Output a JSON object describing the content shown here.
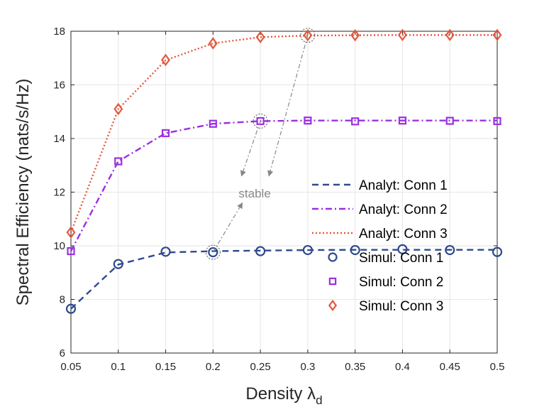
{
  "chart_data": {
    "type": "line",
    "x": [
      0.05,
      0.1,
      0.15,
      0.2,
      0.25,
      0.3,
      0.35,
      0.4,
      0.45,
      0.5
    ],
    "x_tick_labels": [
      "0.05",
      "0.1",
      "0.15",
      "0.2",
      "0.25",
      "0.3",
      "0.35",
      "0.4",
      "0.45",
      "0.5"
    ],
    "y_ticks": [
      6,
      8,
      10,
      12,
      14,
      16,
      18
    ],
    "y_tick_labels": [
      "6",
      "8",
      "10",
      "12",
      "14",
      "16",
      "18"
    ],
    "xlim": [
      0.05,
      0.5
    ],
    "ylim": [
      6,
      18
    ],
    "grid": true,
    "xlabel_main": "Density ",
    "xlabel_symbol": "λ",
    "xlabel_subscript": "d",
    "ylabel": "Spectral Efficiency (nats/s/Hz)",
    "series": [
      {
        "name": "Analyt: Conn 1",
        "kind": "line",
        "style": "dashed",
        "color": "#2f4a8e",
        "values": [
          7.65,
          9.3,
          9.75,
          9.8,
          9.82,
          9.84,
          9.85,
          9.85,
          9.85,
          9.85
        ]
      },
      {
        "name": "Analyt: Conn 2",
        "kind": "line",
        "style": "dashdot",
        "color": "#9b30e0",
        "values": [
          9.8,
          13.15,
          14.2,
          14.55,
          14.65,
          14.67,
          14.67,
          14.67,
          14.67,
          14.67
        ]
      },
      {
        "name": "Analyt: Conn 3",
        "kind": "line",
        "style": "dotted",
        "color": "#e2583e",
        "values": [
          10.5,
          15.1,
          16.92,
          17.55,
          17.78,
          17.84,
          17.85,
          17.86,
          17.86,
          17.86
        ]
      },
      {
        "name": "Simul:  Conn 1",
        "kind": "marker",
        "marker": "circle",
        "color": "#2f4a8e",
        "values": [
          7.65,
          9.32,
          9.78,
          9.76,
          9.8,
          9.84,
          9.84,
          9.87,
          9.84,
          9.77
        ]
      },
      {
        "name": "Simul:  Conn 2",
        "kind": "marker",
        "marker": "square",
        "color": "#9b30e0",
        "values": [
          9.8,
          13.15,
          14.2,
          14.55,
          14.65,
          14.67,
          14.64,
          14.67,
          14.66,
          14.65
        ]
      },
      {
        "name": "Simul:  Conn 3",
        "kind": "marker",
        "marker": "diamond",
        "color": "#e2583e",
        "values": [
          10.5,
          15.1,
          16.93,
          17.55,
          17.78,
          17.85,
          17.85,
          17.86,
          17.86,
          17.86
        ]
      }
    ],
    "legend_position": "center-right",
    "annotation": {
      "text": "stable",
      "color": "#888888",
      "text_at": {
        "x": 0.244,
        "y": 11.8
      },
      "circled_points": [
        {
          "x": 0.2,
          "y": 9.76
        },
        {
          "x": 0.25,
          "y": 14.65
        },
        {
          "x": 0.3,
          "y": 17.85
        }
      ],
      "arrows": [
        {
          "from": {
            "x": 0.2,
            "y": 9.76
          },
          "to": {
            "x": 0.231,
            "y": 11.6
          }
        },
        {
          "from": {
            "x": 0.25,
            "y": 14.65
          },
          "to": {
            "x": 0.23,
            "y": 12.6
          }
        },
        {
          "from": {
            "x": 0.3,
            "y": 17.85
          },
          "to": {
            "x": 0.259,
            "y": 12.6
          }
        }
      ]
    }
  }
}
